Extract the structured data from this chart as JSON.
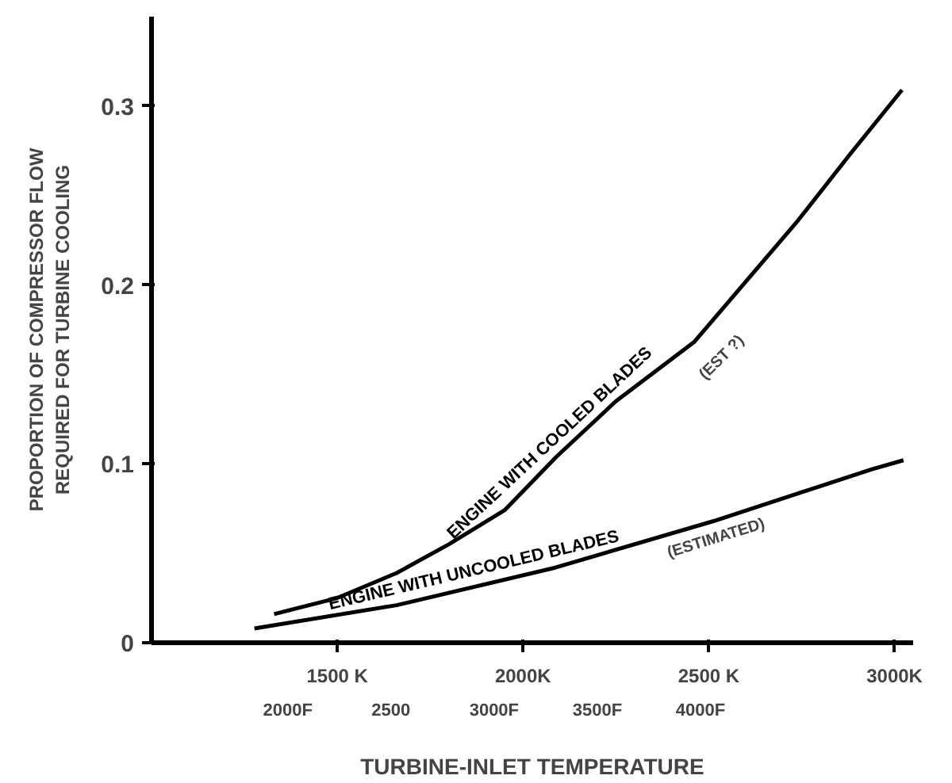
{
  "chart_data": {
    "type": "line",
    "xlabel": "TURBINE-INLET TEMPERATURE",
    "ylabel": "PROPORTION OF COMPRESSOR FLOW\nREQUIRED FOR TURBINE COOLING",
    "xlim": [
      1000,
      3050
    ],
    "ylim": [
      0,
      0.35
    ],
    "xticks": [
      {
        "value": 1500,
        "label": "1500 K"
      },
      {
        "value": 2000,
        "label": "2000K"
      },
      {
        "value": 2500,
        "label": "2500 K"
      },
      {
        "value": 3000,
        "label": "3000K"
      }
    ],
    "x2lim": [
      1340,
      5030
    ],
    "x2ticks": [
      {
        "value": 2000,
        "label": "2000F"
      },
      {
        "value": 2500,
        "label": "2500"
      },
      {
        "value": 3000,
        "label": "3000F"
      },
      {
        "value": 3500,
        "label": "3500F"
      },
      {
        "value": 4000,
        "label": "4000F"
      }
    ],
    "yticks": [
      0,
      0.1,
      0.2,
      0.3
    ],
    "grid": false,
    "marker": "none",
    "line_style": "solid",
    "series": [
      {
        "name": "ENGINE WITH COOLED BLADES",
        "color": "#000000",
        "x": [
          1330,
          1500,
          1660,
          1800,
          1950,
          2090,
          2250,
          2460,
          2740,
          2880,
          3020
        ],
        "values": [
          0.016,
          0.025,
          0.039,
          0.055,
          0.074,
          0.104,
          0.135,
          0.168,
          0.236,
          0.273,
          0.309
        ]
      },
      {
        "name": "ENGINE WITH UNCOOLED BLADES",
        "color": "#000000",
        "x": [
          1277,
          1660,
          2087,
          2513,
          2939,
          3024
        ],
        "values": [
          0.008,
          0.021,
          0.042,
          0.068,
          0.097,
          0.102
        ]
      }
    ],
    "annotations": [
      "(EST ?)",
      "(ESTIMATED)"
    ]
  }
}
